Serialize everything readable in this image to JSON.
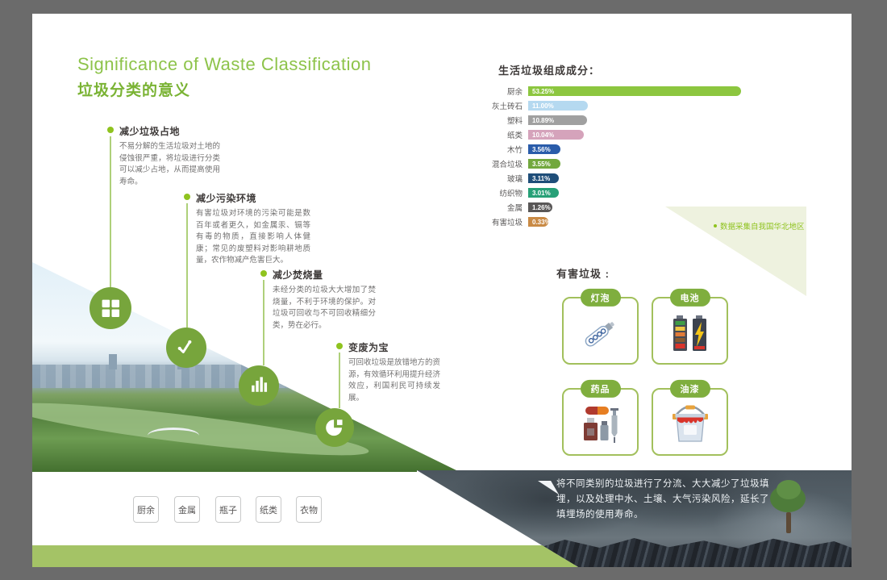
{
  "poster": {
    "title_en": "Significance of Waste Classification",
    "title_zh": "垃圾分类的意义"
  },
  "timeline": {
    "items": [
      {
        "heading": "减少垃圾占地",
        "body": "不易分解的生活垃圾对土地的侵蚀很严重，将垃圾进行分类可以减少占地，从而提高使用寿命。",
        "icon": "grid-icon"
      },
      {
        "heading": "减少污染环境",
        "body": "有害垃圾对环境的污染可能是数百年或者更久，如金属汞、镉等有毒的物质，直接影响人体健康；常见的废塑料对影响耕地质量，农作物减产危害巨大。",
        "icon": "trend-line-icon"
      },
      {
        "heading": "减少焚烧量",
        "body": "未经分类的垃圾大大增加了焚烧量，不利于环境的保护。对垃圾可回收与不可回收精细分类，势在必行。",
        "icon": "bar-chart-icon"
      },
      {
        "heading": "变废为宝",
        "body": "可回收垃圾是放错地方的资源，有效循环利用提升经济效应，利国利民可持续发展。",
        "icon": "pie-chart-icon"
      }
    ]
  },
  "chart_data": {
    "type": "bar",
    "orientation": "horizontal",
    "title": "生活垃圾组成成分：",
    "categories": [
      "厨余",
      "灰土砖石",
      "塑料",
      "纸类",
      "木竹",
      "混合垃圾",
      "玻璃",
      "纺织物",
      "金属",
      "有害垃圾"
    ],
    "values": [
      53.25,
      11.0,
      10.89,
      10.04,
      3.56,
      3.55,
      3.11,
      3.01,
      1.26,
      0.33
    ],
    "labels": [
      "53.25%",
      "11.00%",
      "10.89%",
      "10.04%",
      "3.56%",
      "3.55%",
      "3.11%",
      "3.01%",
      "1.26%",
      "0.33%"
    ],
    "bar_colors": [
      "#8cc63f",
      "#b5d9f0",
      "#a0a0a0",
      "#d5a3bb",
      "#2a5caa",
      "#72a83e",
      "#1f4e79",
      "#27a077",
      "#595757",
      "#c98a45"
    ],
    "note": "数据采集自我国华北地区",
    "xlim": [
      0,
      55
    ],
    "grid": false,
    "legend": "none"
  },
  "hazard": {
    "title": "有害垃圾 :",
    "cards": [
      {
        "label": "灯泡",
        "icon": "bulb-icon"
      },
      {
        "label": "电池",
        "icon": "battery-icon"
      },
      {
        "label": "药品",
        "icon": "medicine-icon"
      },
      {
        "label": "油漆",
        "icon": "paint-icon"
      }
    ]
  },
  "tags": [
    "厨余",
    "金属",
    "瓶子",
    "纸类",
    "衣物"
  ],
  "footer": {
    "caption": "将不同类别的垃圾进行了分流、大大减少了垃圾填埋，以及处理中水、土壤、大气污染风险，延长了填埋场的使用寿命。"
  },
  "colors": {
    "accent_green": "#8dc34a",
    "title_green": "#7ab334",
    "circle_green": "#77a53c",
    "timeline_dot_green": "#8fc31f",
    "card_border_green": "#a2c05c",
    "pill_green": "#7fae3e",
    "pale_triangle_green": "#eef2df",
    "bottom_bar_green": "#a4c366",
    "outer_background": "#6b6b6b",
    "heading_text": "#3e3a39",
    "body_text": "#727171"
  }
}
